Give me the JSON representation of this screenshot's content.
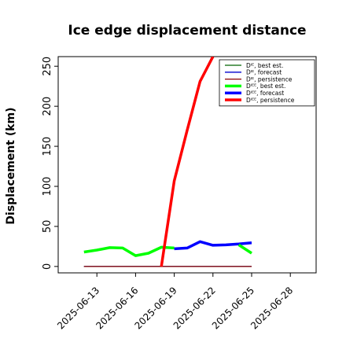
{
  "chart_data": {
    "type": "line",
    "title": "Ice edge displacement distance",
    "xlabel": "",
    "ylabel": "Displacement (km)",
    "ylim": [
      -8,
      262
    ],
    "xlim": [
      "2025-06-10",
      "2025-06-30"
    ],
    "y_ticks": [
      0,
      50,
      100,
      150,
      200,
      250
    ],
    "x_ticks": [
      "2025-06-13",
      "2025-06-16",
      "2025-06-19",
      "2025-06-22",
      "2025-06-25",
      "2025-06-28"
    ],
    "highlighted_tick": "2025-06-19",
    "highlight_color": "#228b22",
    "grid": false,
    "legend_position": "top-right",
    "series": [
      {
        "name": "Dᴵᴱ, best est.",
        "color": "#006400",
        "width": "thin",
        "x": [
          "2025-06-12",
          "2025-06-25"
        ],
        "y": [
          0,
          0
        ]
      },
      {
        "name": "Dᴵᴱ, forecast",
        "color": "#0000cd",
        "width": "thin",
        "x": [
          "2025-06-12",
          "2025-06-25"
        ],
        "y": [
          0,
          0
        ]
      },
      {
        "name": "Dᴵᴱ, persistence",
        "color": "#8b0000",
        "width": "thin",
        "x": [
          "2025-06-12",
          "2025-06-25"
        ],
        "y": [
          0,
          0
        ]
      },
      {
        "name": "Dᴵᴱᴱ, best est.",
        "color": "#00ff00",
        "width": "thick",
        "x": [
          "2025-06-12",
          "2025-06-13",
          "2025-06-14",
          "2025-06-15",
          "2025-06-16",
          "2025-06-17",
          "2025-06-18",
          "2025-06-19"
        ],
        "y": [
          18,
          20.5,
          23.5,
          23,
          13.5,
          16.5,
          24,
          23
        ]
      },
      {
        "name": "Dᴵᴱᴱ, forecast",
        "color": "#0000ff",
        "width": "thick",
        "x": [
          "2025-06-19",
          "2025-06-20",
          "2025-06-21",
          "2025-06-22",
          "2025-06-23",
          "2025-06-24",
          "2025-06-25"
        ],
        "y": [
          22,
          23,
          31,
          26.5,
          27,
          28,
          29.5
        ]
      },
      {
        "name": "Dᴵᴱᴱ, persistence",
        "color": "#ff0000",
        "width": "thick",
        "x": [
          "2025-06-18",
          "2025-06-19",
          "2025-06-20",
          "2025-06-21",
          "2025-06-22"
        ],
        "y": [
          0,
          107,
          170,
          231,
          262
        ]
      },
      {
        "name": "",
        "color": "#00ff00",
        "width": "thick",
        "x": [
          "2025-06-24",
          "2025-06-25"
        ],
        "y": [
          27,
          16.5
        ]
      }
    ]
  }
}
